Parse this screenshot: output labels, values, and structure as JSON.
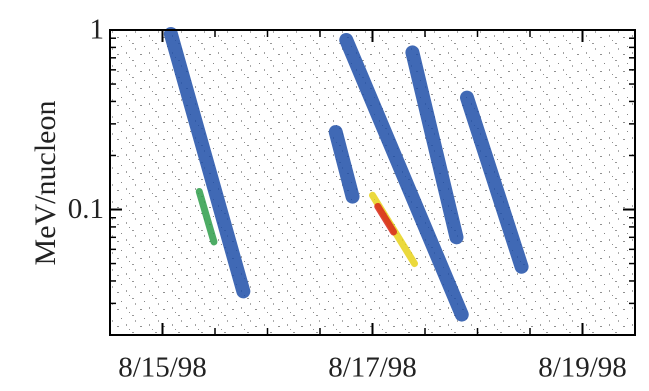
{
  "chart_data": {
    "type": "line",
    "ylabel": "MeV/nucleon",
    "ylog": true,
    "ylim": [
      0.02,
      1
    ],
    "yticks": [
      1,
      0.1
    ],
    "yticks_minor": [
      0.02,
      0.03,
      0.04,
      0.05,
      0.06,
      0.07,
      0.08,
      0.09,
      0.2,
      0.3,
      0.4,
      0.5,
      0.6,
      0.7,
      0.8,
      0.9
    ],
    "xlim": [
      14.5,
      19.5
    ],
    "xticks": [
      {
        "value": 15,
        "label": "8/15/98"
      },
      {
        "value": 17,
        "label": "8/17/98"
      },
      {
        "value": 19,
        "label": "8/19/98"
      }
    ],
    "xticks_minor": [
      15.5,
      16,
      16.5,
      17.5,
      18,
      18.5
    ],
    "series": [
      {
        "color": "#1f4fa8",
        "x": [
          15.08,
          15.77
        ],
        "values": [
          0.95,
          0.035
        ]
      },
      {
        "color": "#1f4fa8",
        "x": [
          16.65,
          16.81
        ],
        "values": [
          0.27,
          0.118
        ]
      },
      {
        "color": "#1f4fa8",
        "x": [
          16.75,
          17.85
        ],
        "values": [
          0.88,
          0.026
        ]
      },
      {
        "color": "#1f4fa8",
        "x": [
          17.38,
          17.8
        ],
        "values": [
          0.75,
          0.07
        ]
      },
      {
        "color": "#1f4fa8",
        "x": [
          17.9,
          18.42
        ],
        "values": [
          0.42,
          0.048
        ]
      },
      {
        "color": "#2e9e4a",
        "x": [
          15.35,
          15.49
        ],
        "values": [
          0.126,
          0.066
        ]
      },
      {
        "color": "#e8d21a",
        "x": [
          17.0,
          17.4
        ],
        "values": [
          0.12,
          0.05
        ]
      },
      {
        "color": "#d8261a",
        "x": [
          17.05,
          17.2
        ],
        "values": [
          0.104,
          0.075
        ]
      }
    ]
  }
}
